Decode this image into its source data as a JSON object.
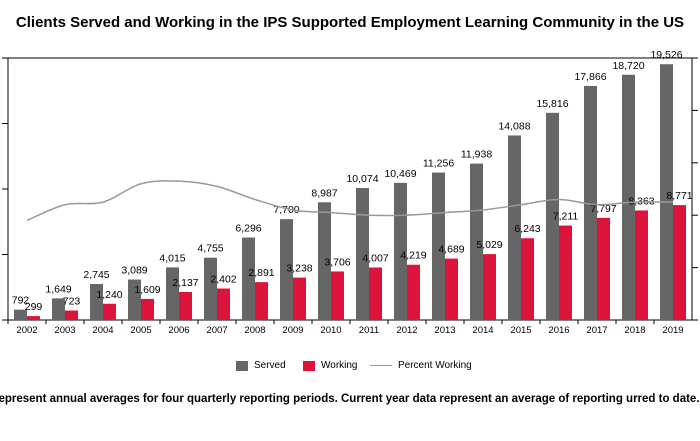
{
  "chart_data": {
    "type": "bar",
    "title": "Clients Served and Working in the IPS Supported Employment Learning Community in the US",
    "categories": [
      "2002",
      "2003",
      "2004",
      "2005",
      "2006",
      "2007",
      "2008",
      "2009",
      "2010",
      "2011",
      "2012",
      "2013",
      "2014",
      "2015",
      "2016",
      "2017",
      "2018",
      "2019"
    ],
    "series": [
      {
        "name": "Served",
        "color": "#666666",
        "values": [
          792,
          1649,
          2745,
          3089,
          4015,
          4755,
          6296,
          7700,
          8987,
          10074,
          10469,
          11256,
          11938,
          14088,
          15816,
          17866,
          18720,
          19526
        ]
      },
      {
        "name": "Working",
        "color": "#dc143c",
        "values": [
          299,
          723,
          1240,
          1609,
          2137,
          2402,
          2891,
          3238,
          3706,
          4007,
          4219,
          4689,
          5029,
          6243,
          7211,
          7797,
          8363,
          8771
        ]
      },
      {
        "name": "Percent Working",
        "type": "line",
        "color": "#999999",
        "values": [
          38,
          44,
          45,
          52,
          53,
          51,
          46,
          42,
          41,
          40,
          40,
          41,
          42,
          44,
          46,
          44,
          45,
          45
        ]
      }
    ],
    "data_labels": [
      "792",
      "1,649",
      "2,745",
      "3,089",
      "4,015",
      "4,755",
      "6,296",
      "7,700",
      "8,987",
      "10,074",
      "10,469",
      "11,256",
      "11,938",
      "14,088",
      "15,816",
      "17,866",
      "18,720",
      "19,526"
    ],
    "working_labels": [
      "299",
      "723",
      "1,240",
      "1,609",
      "2,137",
      "2,402",
      "2,891",
      "3,238",
      "3,706",
      "4,007",
      "4,219",
      "4,689",
      "5,029",
      "6,243",
      "7,211",
      "7,797",
      "8,363",
      "8,771"
    ],
    "ylim": [
      0,
      20000
    ],
    "y2lim": [
      0,
      100
    ],
    "grid": false,
    "legend_position": "bottom"
  },
  "legend": {
    "served": "Served",
    "working": "Working",
    "percent": "Percent Working"
  },
  "footnote": "represent annual averages for four quarterly reporting periods. Current year data represent an average of reporting urred to date."
}
